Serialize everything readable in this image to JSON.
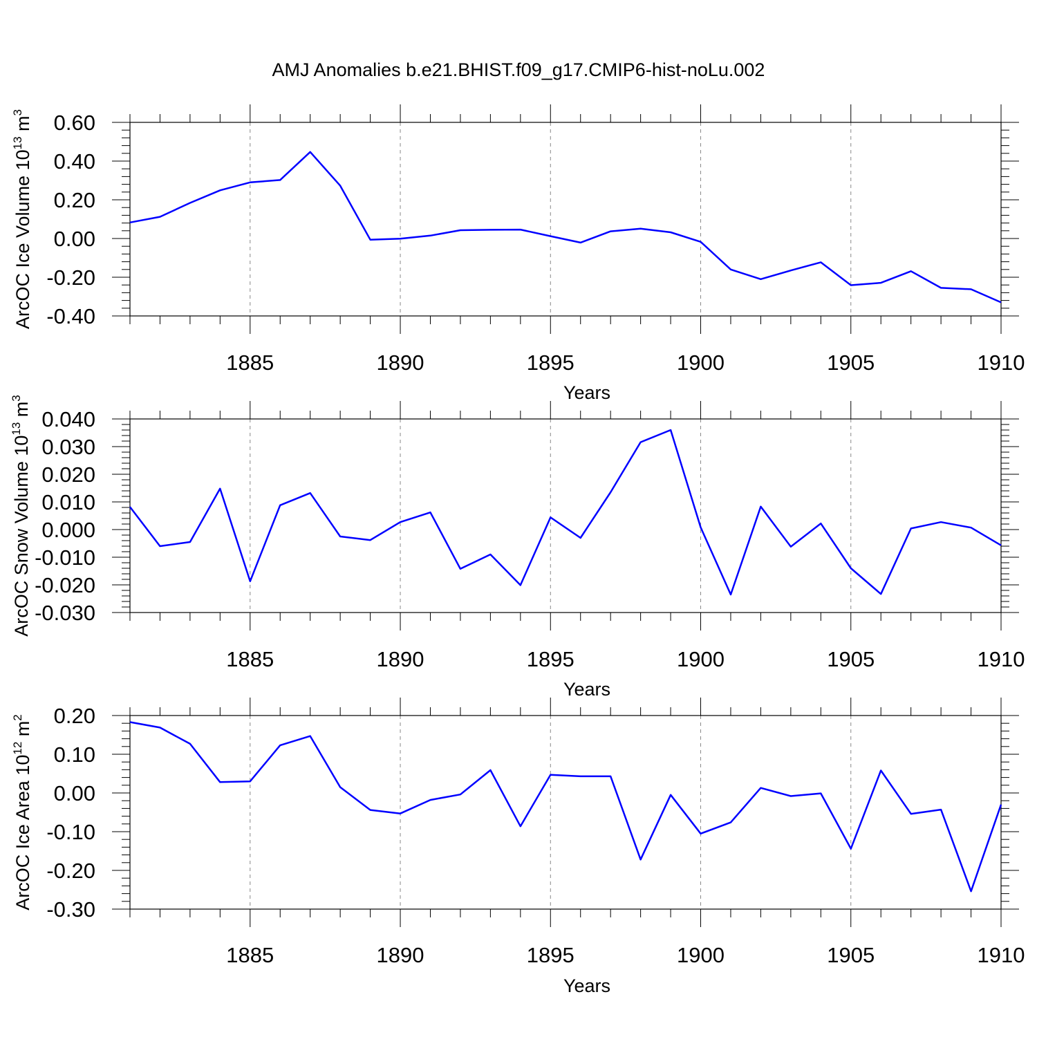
{
  "title": "AMJ Anomalies b.e21.BHIST.f09_g17.CMIP6-hist-noLu.002",
  "line_color": "#0000ff",
  "chart_data": [
    {
      "type": "line",
      "ylabel": "ArcOC Ice Volume 10",
      "ylabel_exp": "13",
      "ylabel_unit": " m",
      "ylabel_unit_exp": "3",
      "xlabel": "Years",
      "xlim": [
        1881,
        1910
      ],
      "ylim": [
        -0.4,
        0.6
      ],
      "yticks": [
        -0.4,
        -0.2,
        0.0,
        0.2,
        0.4,
        0.6
      ],
      "ytick_labels": [
        "-0.40",
        "-0.20",
        "0.00",
        "0.20",
        "0.40",
        "0.60"
      ],
      "xticks": [
        1885,
        1890,
        1895,
        1900,
        1905,
        1910
      ],
      "xtick_labels": [
        "1885",
        "1890",
        "1895",
        "1900",
        "1905",
        "1910"
      ],
      "grid": "dashed vertical at major x ticks",
      "x": [
        1881,
        1882,
        1883,
        1884,
        1885,
        1886,
        1887,
        1888,
        1889,
        1890,
        1891,
        1892,
        1893,
        1894,
        1895,
        1896,
        1897,
        1898,
        1899,
        1900,
        1901,
        1902,
        1903,
        1904,
        1905,
        1906,
        1907,
        1908,
        1909,
        1910
      ],
      "values": [
        0.083,
        0.112,
        0.184,
        0.249,
        0.29,
        0.302,
        0.447,
        0.273,
        -0.006,
        -0.001,
        0.015,
        0.043,
        0.045,
        0.046,
        0.012,
        -0.021,
        0.037,
        0.051,
        0.032,
        -0.017,
        -0.16,
        -0.21,
        -0.165,
        -0.123,
        -0.241,
        -0.229,
        -0.169,
        -0.255,
        -0.262,
        -0.33
      ]
    },
    {
      "type": "line",
      "ylabel": "ArcOC Snow Volume 10",
      "ylabel_exp": "13",
      "ylabel_unit": " m",
      "ylabel_unit_exp": "3",
      "xlabel": "Years",
      "xlim": [
        1881,
        1910
      ],
      "ylim": [
        -0.03,
        0.04
      ],
      "yticks": [
        -0.03,
        -0.02,
        -0.01,
        0.0,
        0.01,
        0.02,
        0.03,
        0.04
      ],
      "ytick_labels": [
        "-0.030",
        "-0.020",
        "-0.010",
        "0.000",
        "0.010",
        "0.020",
        "0.030",
        "0.040"
      ],
      "xticks": [
        1885,
        1890,
        1895,
        1900,
        1905,
        1910
      ],
      "xtick_labels": [
        "1885",
        "1890",
        "1895",
        "1900",
        "1905",
        "1910"
      ],
      "grid": "dashed vertical at major x ticks",
      "x": [
        1881,
        1882,
        1883,
        1884,
        1885,
        1886,
        1887,
        1888,
        1889,
        1890,
        1891,
        1892,
        1893,
        1894,
        1895,
        1896,
        1897,
        1898,
        1899,
        1900,
        1901,
        1902,
        1903,
        1904,
        1905,
        1906,
        1907,
        1908,
        1909,
        1910
      ],
      "values": [
        0.0082,
        -0.006,
        -0.0045,
        0.0148,
        -0.0187,
        0.0088,
        0.0132,
        -0.0025,
        -0.0038,
        0.0027,
        0.0062,
        -0.0142,
        -0.009,
        -0.0201,
        0.0044,
        -0.003,
        0.0135,
        0.0316,
        0.036,
        0.0008,
        -0.0235,
        0.0083,
        -0.0062,
        0.0022,
        -0.014,
        -0.0233,
        0.0004,
        0.0027,
        0.0007,
        -0.0057
      ]
    },
    {
      "type": "line",
      "ylabel": "ArcOC Ice Area 10",
      "ylabel_exp": "12",
      "ylabel_unit": " m",
      "ylabel_unit_exp": "2",
      "xlabel": "Years",
      "xlim": [
        1881,
        1910
      ],
      "ylim": [
        -0.3,
        0.2
      ],
      "yticks": [
        -0.3,
        -0.2,
        -0.1,
        0.0,
        0.1,
        0.2
      ],
      "ytick_labels": [
        "-0.30",
        "-0.20",
        "-0.10",
        "0.00",
        "0.10",
        "0.20"
      ],
      "xticks": [
        1885,
        1890,
        1895,
        1900,
        1905,
        1910
      ],
      "xtick_labels": [
        "1885",
        "1890",
        "1895",
        "1900",
        "1905",
        "1910"
      ],
      "grid": "dashed vertical at major x ticks",
      "x": [
        1881,
        1882,
        1883,
        1884,
        1885,
        1886,
        1887,
        1888,
        1889,
        1890,
        1891,
        1892,
        1893,
        1894,
        1895,
        1896,
        1897,
        1898,
        1899,
        1900,
        1901,
        1902,
        1903,
        1904,
        1905,
        1906,
        1907,
        1908,
        1909,
        1910
      ],
      "values": [
        0.183,
        0.169,
        0.127,
        0.028,
        0.03,
        0.123,
        0.147,
        0.015,
        -0.044,
        -0.053,
        -0.018,
        -0.004,
        0.059,
        -0.086,
        0.047,
        0.043,
        0.043,
        -0.172,
        -0.005,
        -0.105,
        -0.076,
        0.013,
        -0.008,
        -0.001,
        -0.144,
        0.058,
        -0.054,
        -0.043,
        -0.254,
        -0.03
      ]
    }
  ]
}
